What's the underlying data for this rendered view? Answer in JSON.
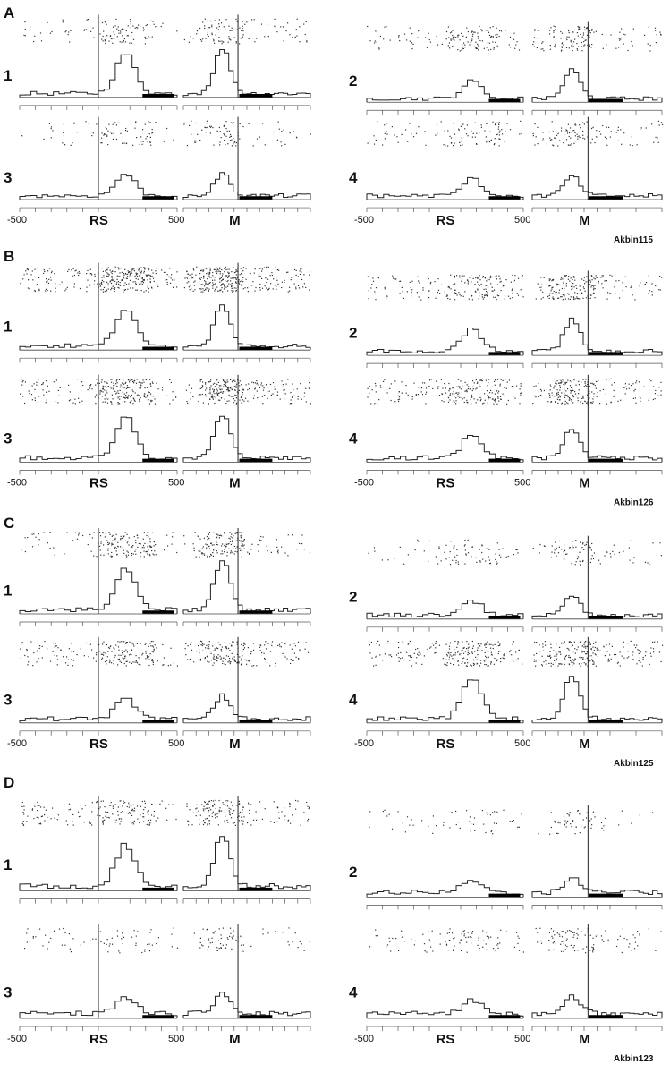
{
  "figure": {
    "panels": [
      {
        "label": "A",
        "id": "Akbin115",
        "raster_density": [
          0.8,
          1.0,
          0.6,
          0.8
        ],
        "peaks": {
          "rs": [
            0.82,
            0.38,
            0.45,
            0.35
          ],
          "m": [
            0.92,
            0.62,
            0.45,
            0.4
          ]
        }
      },
      {
        "label": "B",
        "id": "Akbin126",
        "raster_density": [
          2.2,
          1.4,
          1.8,
          1.6
        ],
        "peaks": {
          "rs": [
            0.7,
            0.45,
            0.78,
            0.45
          ],
          "m": [
            0.75,
            0.62,
            0.8,
            0.55
          ]
        }
      },
      {
        "label": "C",
        "id": "Akbin125",
        "raster_density": [
          1.2,
          0.6,
          1.4,
          1.6
        ],
        "peaks": {
          "rs": [
            0.8,
            0.3,
            0.4,
            0.8
          ],
          "m": [
            0.95,
            0.4,
            0.45,
            0.85
          ]
        }
      },
      {
        "label": "D",
        "id": "Akbin123",
        "raster_density": [
          1.2,
          0.4,
          0.5,
          0.7
        ],
        "peaks": {
          "rs": [
            0.68,
            0.22,
            0.28,
            0.22
          ],
          "m": [
            0.85,
            0.25,
            0.35,
            0.3
          ]
        }
      }
    ],
    "cell_numbers": [
      "1",
      "2",
      "3",
      "4"
    ],
    "axis": {
      "x_min_label": "-500",
      "x_max_label": "500",
      "left_align": "RS",
      "right_align": "M"
    }
  }
}
